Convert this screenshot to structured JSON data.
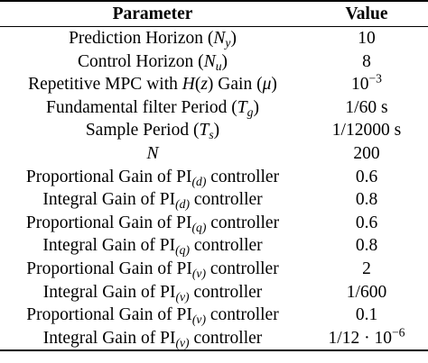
{
  "table": {
    "header": {
      "parameter": "Parameter",
      "value": "Value"
    },
    "rows": [
      {
        "label": "Prediction Horizon (",
        "sym": "N",
        "sub": "y",
        "tail": ")",
        "value": "10"
      },
      {
        "label": "Control Horizon (",
        "sym": "N",
        "sub": "u",
        "tail": ")",
        "value": "8"
      },
      {
        "label_a": "Repetitive MPC with ",
        "label_b": "H",
        "label_c": "(",
        "label_d": "z",
        "label_e": ") Gain (",
        "label_f": "μ",
        "label_g": ")",
        "value_base": "10",
        "value_exp": "−3"
      },
      {
        "label": "Fundamental filter Period (",
        "sym": "T",
        "sub": "g",
        "tail": ")",
        "value": "1/60 s"
      },
      {
        "label": "Sample Period (",
        "sym": "T",
        "sub": "s",
        "tail": ")",
        "value": "1/12000 s"
      },
      {
        "sym": "N",
        "value": "200"
      },
      {
        "label": "Proportional Gain of PI",
        "sub": "(d)",
        "tail": " controller",
        "value": "0.6"
      },
      {
        "label": "Integral Gain of PI",
        "sub": "(d)",
        "tail": " controller",
        "value": "0.8"
      },
      {
        "label": "Proportional Gain of PI",
        "sub": "(q)",
        "tail": " controller",
        "value": "0.6"
      },
      {
        "label": "Integral Gain of PI",
        "sub": "(q)",
        "tail": " controller",
        "value": "0.8"
      },
      {
        "label": "Proportional Gain of PI",
        "sub": "(v)",
        "tail": " controller",
        "value": "2"
      },
      {
        "label": "Integral Gain of PI",
        "sub": "(v)",
        "tail": " controller",
        "value": "1/600"
      },
      {
        "label": "Proportional Gain of PI",
        "sub": "(v)",
        "tail": " controller",
        "value": "0.1"
      },
      {
        "label": "Integral Gain of PI",
        "sub": "(v)",
        "tail": " controller",
        "value_base": "1/12 · 10",
        "value_exp": "−6"
      }
    ]
  }
}
